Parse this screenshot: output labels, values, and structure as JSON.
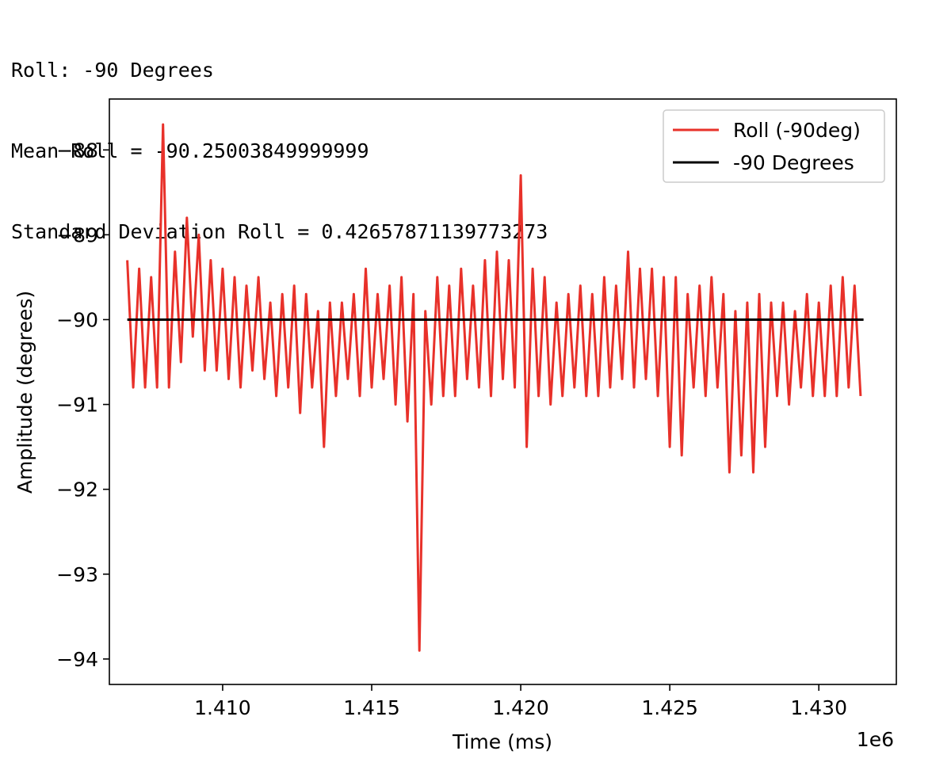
{
  "output": {
    "line1": "Roll: -90 Degrees",
    "line2": "Mean Roll = -90.25003849999999",
    "line3": "Standard Deviation Roll = 0.42657871139773273"
  },
  "chart_data": {
    "type": "line",
    "title": "",
    "xlabel": "Time (ms)",
    "ylabel": "Amplitude (degrees)",
    "x_offset_label": "1e6",
    "xlim": [
      1.4062,
      1.4326
    ],
    "ylim": [
      -94.3,
      -87.4
    ],
    "xticks": [
      1.41,
      1.415,
      1.42,
      1.425,
      1.43
    ],
    "xtick_labels": [
      "1.410",
      "1.415",
      "1.420",
      "1.425",
      "1.430"
    ],
    "yticks": [
      -88,
      -89,
      -90,
      -91,
      -92,
      -93,
      -94
    ],
    "ytick_labels": [
      "−88",
      "−89",
      "−90",
      "−91",
      "−92",
      "−93",
      "−94"
    ],
    "grid": false,
    "legend": "upper right",
    "series": [
      {
        "name": "Roll (-90deg)",
        "color": "#e8312a",
        "x": [
          1.4068,
          1.407,
          1.4072,
          1.4074,
          1.4076,
          1.4078,
          1.408,
          1.4082,
          1.4084,
          1.4086,
          1.4088,
          1.409,
          1.4092,
          1.4094,
          1.4096,
          1.4098,
          1.41,
          1.4102,
          1.4104,
          1.4106,
          1.4108,
          1.411,
          1.4112,
          1.4114,
          1.4116,
          1.4118,
          1.412,
          1.4122,
          1.4124,
          1.4126,
          1.4128,
          1.413,
          1.4132,
          1.4134,
          1.4136,
          1.4138,
          1.414,
          1.4142,
          1.4144,
          1.4146,
          1.4148,
          1.415,
          1.4152,
          1.4154,
          1.4156,
          1.4158,
          1.416,
          1.4162,
          1.4164,
          1.4166,
          1.4168,
          1.417,
          1.4172,
          1.4174,
          1.4176,
          1.4178,
          1.418,
          1.4182,
          1.4184,
          1.4186,
          1.4188,
          1.419,
          1.4192,
          1.4194,
          1.4196,
          1.4198,
          1.42,
          1.4202,
          1.4204,
          1.4206,
          1.4208,
          1.421,
          1.4212,
          1.4214,
          1.4216,
          1.4218,
          1.422,
          1.4222,
          1.4224,
          1.4226,
          1.4228,
          1.423,
          1.4232,
          1.4234,
          1.4236,
          1.4238,
          1.424,
          1.4242,
          1.4244,
          1.4246,
          1.4248,
          1.425,
          1.4252,
          1.4254,
          1.4256,
          1.4258,
          1.426,
          1.4262,
          1.4264,
          1.4266,
          1.4268,
          1.427,
          1.4272,
          1.4274,
          1.4276,
          1.4278,
          1.428,
          1.4282,
          1.4284,
          1.4286,
          1.4288,
          1.429,
          1.4292,
          1.4294,
          1.4296,
          1.4298,
          1.43,
          1.4302,
          1.4304,
          1.4306,
          1.4308,
          1.431,
          1.4312,
          1.4314
        ],
        "y": [
          -89.3,
          -90.8,
          -89.4,
          -90.8,
          -89.5,
          -90.8,
          -87.7,
          -90.8,
          -89.2,
          -90.5,
          -88.8,
          -90.2,
          -89.0,
          -90.6,
          -89.3,
          -90.6,
          -89.4,
          -90.7,
          -89.5,
          -90.8,
          -89.6,
          -90.6,
          -89.5,
          -90.7,
          -89.8,
          -90.9,
          -89.7,
          -90.8,
          -89.6,
          -91.1,
          -89.7,
          -90.8,
          -89.9,
          -91.5,
          -89.8,
          -90.9,
          -89.8,
          -90.7,
          -89.7,
          -90.9,
          -89.4,
          -90.8,
          -89.7,
          -90.7,
          -89.6,
          -91.0,
          -89.5,
          -91.2,
          -89.7,
          -93.9,
          -89.9,
          -91.0,
          -89.5,
          -90.9,
          -89.6,
          -90.9,
          -89.4,
          -90.7,
          -89.6,
          -90.8,
          -89.3,
          -90.9,
          -89.2,
          -90.7,
          -89.3,
          -90.8,
          -88.3,
          -91.5,
          -89.4,
          -90.9,
          -89.5,
          -91.0,
          -89.8,
          -90.9,
          -89.7,
          -90.8,
          -89.6,
          -90.9,
          -89.7,
          -90.9,
          -89.5,
          -90.8,
          -89.6,
          -90.7,
          -89.2,
          -90.8,
          -89.4,
          -90.7,
          -89.4,
          -90.9,
          -89.5,
          -91.5,
          -89.5,
          -91.6,
          -89.7,
          -90.8,
          -89.6,
          -90.9,
          -89.5,
          -90.8,
          -89.7,
          -91.8,
          -89.9,
          -91.6,
          -89.8,
          -91.8,
          -89.7,
          -91.5,
          -89.8,
          -90.9,
          -89.8,
          -91.0,
          -89.9,
          -90.8,
          -89.7,
          -90.9,
          -89.8,
          -90.9,
          -89.6,
          -90.9,
          -89.5,
          -90.8,
          -89.6,
          -90.9
        ]
      },
      {
        "name": "-90 Degrees",
        "color": "#000000",
        "x": [
          1.4068,
          1.4315
        ],
        "y": [
          -90.0,
          -90.0
        ]
      }
    ]
  }
}
